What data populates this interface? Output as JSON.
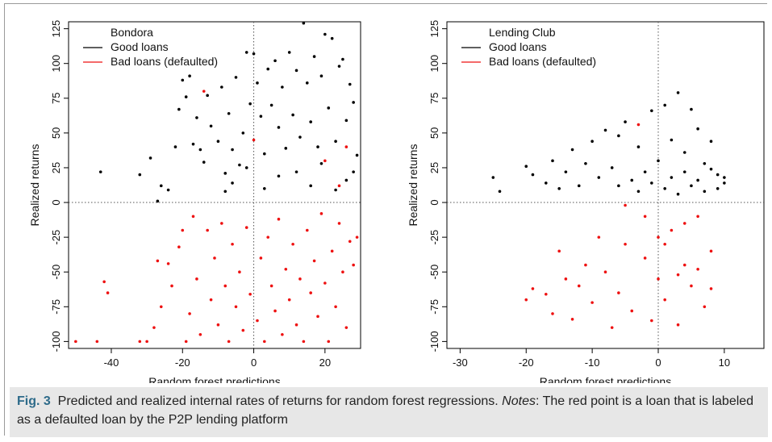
{
  "figure": {
    "label": "Fig. 3",
    "caption": "Predicted and realized internal rates of returns for random forest regressions.",
    "notes_label": "Notes",
    "notes_text": ": The red point is a loan that is labeled as a defaulted loan by the P2P lending platform",
    "colors": {
      "good": "#000000",
      "bad": "#ee1111",
      "caption_bg": "#e7e7e7",
      "label": "#2e6b8a"
    }
  },
  "chart_data": [
    {
      "type": "scatter",
      "title": "Bondora",
      "xlabel": "Random forest predictions",
      "ylabel": "Realized returns",
      "xlim": [
        -52,
        30
      ],
      "ylim": [
        -105,
        130
      ],
      "xticks": [
        -40,
        -20,
        0,
        20
      ],
      "yticks": [
        -100,
        -75,
        -50,
        -25,
        0,
        25,
        50,
        75,
        100,
        125
      ],
      "reference_lines": {
        "x": 0,
        "y": 0,
        "style": "dotted"
      },
      "legend": {
        "position": "top-left",
        "entries": [
          "Good loans",
          "Bad loans (defaulted)"
        ]
      },
      "series": [
        {
          "name": "Good loans",
          "color": "#000000",
          "points": [
            [
              -43,
              22
            ],
            [
              -32,
              20
            ],
            [
              -29,
              32
            ],
            [
              -27,
              1
            ],
            [
              -26,
              12
            ],
            [
              -24,
              9
            ],
            [
              -22,
              40
            ],
            [
              -21,
              67
            ],
            [
              -20,
              88
            ],
            [
              -19,
              76
            ],
            [
              -18,
              91
            ],
            [
              -17,
              42
            ],
            [
              -16,
              61
            ],
            [
              -15,
              38
            ],
            [
              -14,
              29
            ],
            [
              -13,
              77
            ],
            [
              -12,
              55
            ],
            [
              -10,
              44
            ],
            [
              -9,
              83
            ],
            [
              -8,
              21
            ],
            [
              -7,
              64
            ],
            [
              -6,
              38
            ],
            [
              -5,
              90
            ],
            [
              -4,
              27
            ],
            [
              -3,
              50
            ],
            [
              -2,
              108
            ],
            [
              -1,
              71
            ],
            [
              0,
              107
            ],
            [
              1,
              86
            ],
            [
              2,
              62
            ],
            [
              3,
              35
            ],
            [
              4,
              96
            ],
            [
              5,
              70
            ],
            [
              6,
              102
            ],
            [
              7,
              54
            ],
            [
              8,
              83
            ],
            [
              9,
              39
            ],
            [
              10,
              108
            ],
            [
              11,
              63
            ],
            [
              12,
              95
            ],
            [
              13,
              47
            ],
            [
              14,
              129
            ],
            [
              15,
              86
            ],
            [
              16,
              58
            ],
            [
              17,
              105
            ],
            [
              18,
              40
            ],
            [
              19,
              91
            ],
            [
              20,
              121
            ],
            [
              21,
              68
            ],
            [
              22,
              118
            ],
            [
              23,
              44
            ],
            [
              24,
              98
            ],
            [
              25,
              103
            ],
            [
              26,
              59
            ],
            [
              27,
              85
            ],
            [
              28,
              72
            ],
            [
              29,
              34
            ],
            [
              -8,
              8
            ],
            [
              -6,
              14
            ],
            [
              -2,
              25
            ],
            [
              3,
              10
            ],
            [
              7,
              19
            ],
            [
              12,
              22
            ],
            [
              16,
              12
            ],
            [
              19,
              28
            ],
            [
              23,
              9
            ],
            [
              26,
              16
            ],
            [
              28,
              22
            ]
          ]
        },
        {
          "name": "Bad loans (defaulted)",
          "color": "#ee1111",
          "points": [
            [
              -50,
              -100
            ],
            [
              -44,
              -100
            ],
            [
              -42,
              -57
            ],
            [
              -41,
              -65
            ],
            [
              -32,
              -100
            ],
            [
              -30,
              -100
            ],
            [
              -28,
              -90
            ],
            [
              -27,
              -42
            ],
            [
              -26,
              -75
            ],
            [
              -24,
              -44
            ],
            [
              -23,
              -60
            ],
            [
              -21,
              -32
            ],
            [
              -20,
              -20
            ],
            [
              -19,
              -100
            ],
            [
              -18,
              -80
            ],
            [
              -17,
              -10
            ],
            [
              -16,
              -55
            ],
            [
              -15,
              -95
            ],
            [
              -14,
              80
            ],
            [
              -13,
              -20
            ],
            [
              -12,
              -70
            ],
            [
              -11,
              -40
            ],
            [
              -10,
              -88
            ],
            [
              -9,
              -15
            ],
            [
              -8,
              -60
            ],
            [
              -7,
              -100
            ],
            [
              -6,
              -30
            ],
            [
              -5,
              -75
            ],
            [
              -4,
              -50
            ],
            [
              -3,
              -92
            ],
            [
              -2,
              -18
            ],
            [
              -1,
              -66
            ],
            [
              0,
              45
            ],
            [
              1,
              -85
            ],
            [
              2,
              -40
            ],
            [
              3,
              -100
            ],
            [
              4,
              -25
            ],
            [
              5,
              -60
            ],
            [
              6,
              -78
            ],
            [
              7,
              -12
            ],
            [
              8,
              -95
            ],
            [
              9,
              -48
            ],
            [
              10,
              -70
            ],
            [
              11,
              -30
            ],
            [
              12,
              -88
            ],
            [
              13,
              -55
            ],
            [
              14,
              -100
            ],
            [
              15,
              -20
            ],
            [
              16,
              -65
            ],
            [
              17,
              -42
            ],
            [
              18,
              -82
            ],
            [
              19,
              -8
            ],
            [
              20,
              -58
            ],
            [
              21,
              -100
            ],
            [
              22,
              -35
            ],
            [
              23,
              -75
            ],
            [
              24,
              -15
            ],
            [
              25,
              -50
            ],
            [
              26,
              -90
            ],
            [
              27,
              -28
            ],
            [
              28,
              -45
            ],
            [
              29,
              -25
            ],
            [
              20,
              30
            ],
            [
              24,
              12
            ],
            [
              26,
              40
            ]
          ]
        }
      ]
    },
    {
      "type": "scatter",
      "title": "Lending Club",
      "xlabel": "Random forest predictions",
      "ylabel": "Realized returns",
      "xlim": [
        -32,
        16
      ],
      "ylim": [
        -105,
        130
      ],
      "xticks": [
        -30,
        -20,
        -10,
        0,
        10
      ],
      "yticks": [
        -100,
        -75,
        -50,
        -25,
        0,
        25,
        50,
        75,
        100,
        125
      ],
      "reference_lines": {
        "x": 0,
        "y": 0,
        "style": "dotted"
      },
      "legend": {
        "position": "top-left",
        "entries": [
          "Good loans",
          "Bad loans (defaulted)"
        ]
      },
      "series": [
        {
          "name": "Good loans",
          "color": "#000000",
          "points": [
            [
              -25,
              18
            ],
            [
              -24,
              8
            ],
            [
              -20,
              26
            ],
            [
              -19,
              20
            ],
            [
              -17,
              14
            ],
            [
              -16,
              30
            ],
            [
              -15,
              10
            ],
            [
              -14,
              22
            ],
            [
              -13,
              38
            ],
            [
              -12,
              12
            ],
            [
              -11,
              28
            ],
            [
              -10,
              44
            ],
            [
              -9,
              18
            ],
            [
              -8,
              52
            ],
            [
              -7,
              25
            ],
            [
              -6,
              48
            ],
            [
              -5,
              58
            ],
            [
              -4,
              16
            ],
            [
              -3,
              40
            ],
            [
              -2,
              22
            ],
            [
              -1,
              66
            ],
            [
              0,
              30
            ],
            [
              1,
              70
            ],
            [
              2,
              45
            ],
            [
              3,
              79
            ],
            [
              4,
              36
            ],
            [
              5,
              67
            ],
            [
              6,
              53
            ],
            [
              7,
              28
            ],
            [
              8,
              44
            ],
            [
              9,
              20
            ],
            [
              10,
              18
            ],
            [
              -6,
              12
            ],
            [
              -3,
              8
            ],
            [
              -1,
              14
            ],
            [
              1,
              10
            ],
            [
              2,
              18
            ],
            [
              3,
              6
            ],
            [
              4,
              22
            ],
            [
              5,
              12
            ],
            [
              6,
              16
            ],
            [
              7,
              8
            ],
            [
              8,
              24
            ],
            [
              9,
              10
            ],
            [
              10,
              14
            ]
          ]
        },
        {
          "name": "Bad loans (defaulted)",
          "color": "#ee1111",
          "points": [
            [
              -20,
              -70
            ],
            [
              -19,
              -62
            ],
            [
              -17,
              -66
            ],
            [
              -16,
              -80
            ],
            [
              -15,
              -35
            ],
            [
              -14,
              -55
            ],
            [
              -13,
              -84
            ],
            [
              -12,
              -60
            ],
            [
              -11,
              -45
            ],
            [
              -10,
              -72
            ],
            [
              -9,
              -25
            ],
            [
              -8,
              -50
            ],
            [
              -7,
              -90
            ],
            [
              -6,
              -65
            ],
            [
              -5,
              -2
            ],
            [
              -4,
              -78
            ],
            [
              -3,
              56
            ],
            [
              -2,
              -40
            ],
            [
              -1,
              -85
            ],
            [
              0,
              -55
            ],
            [
              1,
              -70
            ],
            [
              2,
              -20
            ],
            [
              3,
              -88
            ],
            [
              4,
              -45
            ],
            [
              5,
              -60
            ],
            [
              6,
              -10
            ],
            [
              7,
              -75
            ],
            [
              8,
              -35
            ],
            [
              -5,
              -30
            ],
            [
              -2,
              -10
            ],
            [
              1,
              -30
            ],
            [
              4,
              -15
            ],
            [
              6,
              -48
            ],
            [
              8,
              -62
            ],
            [
              3,
              -52
            ],
            [
              0,
              -25
            ]
          ]
        }
      ]
    }
  ]
}
